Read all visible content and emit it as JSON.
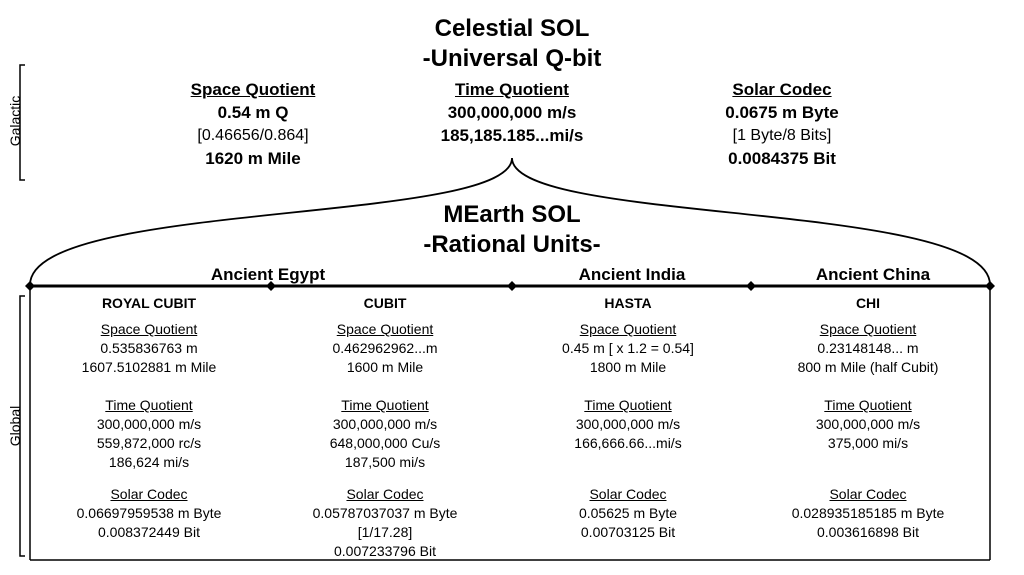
{
  "header": {
    "title_line1": "Celestial SOL",
    "title_line2": "-Universal  Q-bit"
  },
  "galactic": {
    "side_label": "Galactic",
    "columns": [
      {
        "heading": "Space Quotient",
        "lines": [
          "0.54 m Q",
          "[0.46656/0.864]",
          "1620 m Mile"
        ]
      },
      {
        "heading": "Time Quotient",
        "lines": [
          "300,000,000 m/s",
          "185,185.185...mi/s"
        ]
      },
      {
        "heading": "Solar Codec",
        "lines": [
          "0.0675 m Byte",
          "[1 Byte/8 Bits]",
          "0.0084375 Bit"
        ]
      }
    ]
  },
  "mearth": {
    "title_line1": "MEarth SOL",
    "title_line2": "-Rational Units-"
  },
  "regions": [
    {
      "label": "Ancient Egypt"
    },
    {
      "label": "Ancient India"
    },
    {
      "label": "Ancient China"
    }
  ],
  "global": {
    "side_label": "Global",
    "columns": [
      {
        "unit": "ROYAL CUBIT",
        "space_heading": "Space Quotient",
        "space": [
          "0.535836763 m",
          "1607.5102881 m Mile"
        ],
        "time_heading": "Time Quotient",
        "time": [
          "300,000,000 m/s",
          "559,872,000 rc/s",
          "186,624 mi/s"
        ],
        "codec_heading": "Solar Codec",
        "codec": [
          "0.06697959538 m Byte",
          "0.008372449 Bit"
        ]
      },
      {
        "unit": "CUBIT",
        "space_heading": "Space Quotient",
        "space": [
          "0.462962962...m",
          "1600 m Mile"
        ],
        "time_heading": "Time Quotient",
        "time": [
          "300,000,000 m/s",
          "648,000,000 Cu/s",
          "187,500 mi/s"
        ],
        "codec_heading": "Solar Codec",
        "codec": [
          "0.05787037037 m Byte",
          "[1/17.28]",
          "0.007233796 Bit"
        ]
      },
      {
        "unit": "HASTA",
        "space_heading": "Space Quotient",
        "space": [
          "0.45 m [ x 1.2 = 0.54]",
          "1800 m Mile"
        ],
        "time_heading": "Time Quotient",
        "time": [
          "300,000,000 m/s",
          "166,666.66...mi/s"
        ],
        "codec_heading": "Solar Codec",
        "codec": [
          "0.05625 m Byte",
          "0.00703125 Bit"
        ]
      },
      {
        "unit": "CHI",
        "space_heading": "Space Quotient",
        "space": [
          "0.23148148... m",
          "800 m Mile (half Cubit)"
        ],
        "time_heading": "Time Quotient",
        "time": [
          "300,000,000 m/s",
          "375,000 mi/s"
        ],
        "codec_heading": "Solar Codec",
        "codec": [
          "0.028935185185 m Byte",
          "0.003616898 Bit"
        ]
      }
    ]
  }
}
